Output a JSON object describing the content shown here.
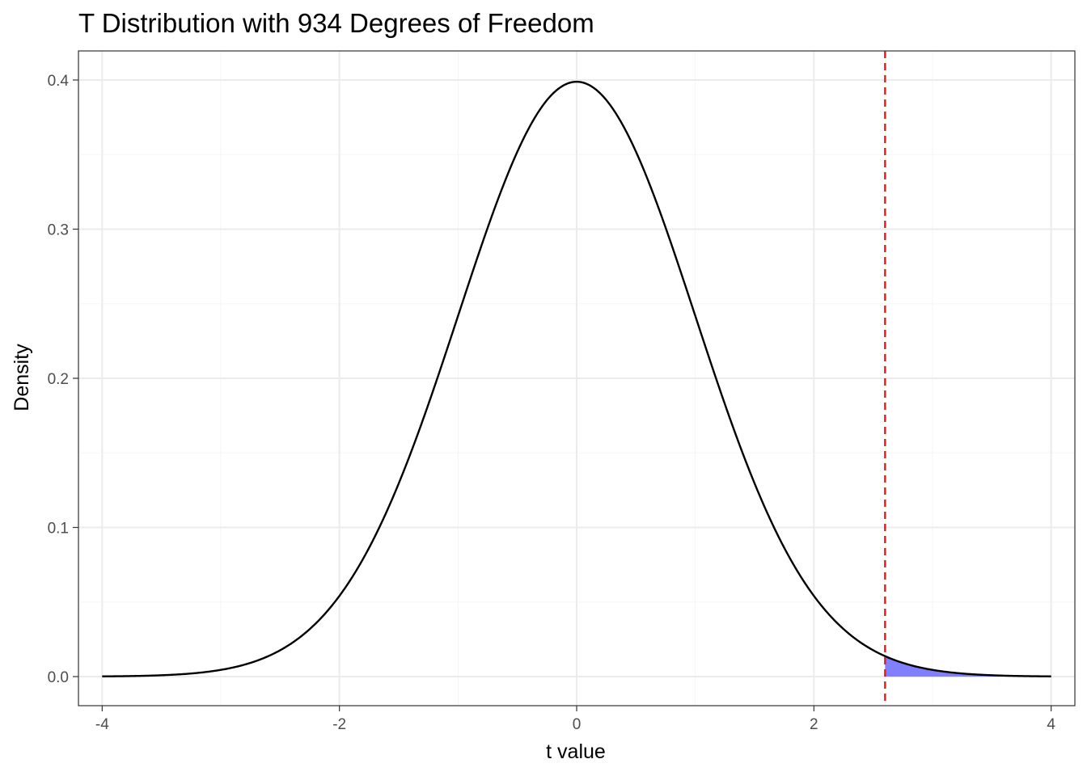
{
  "chart_data": {
    "type": "line",
    "title": "T Distribution with 934 Degrees of Freedom",
    "xlabel": "t value",
    "ylabel": "Density",
    "degrees_of_freedom": 934,
    "xlim": [
      -4.2,
      4.2
    ],
    "ylim": [
      -0.0195,
      0.4195
    ],
    "x_ticks": [
      -4,
      -2,
      0,
      2,
      4
    ],
    "x_tick_labels": [
      "-4",
      "-2",
      "0",
      "2",
      "4"
    ],
    "y_ticks": [
      0.0,
      0.1,
      0.2,
      0.3,
      0.4
    ],
    "y_tick_labels": [
      "0.0",
      "0.1",
      "0.2",
      "0.3",
      "0.4"
    ],
    "grid": true,
    "series": [
      {
        "x": [
          -4.0,
          -3.8,
          -3.6,
          -3.4,
          -3.2,
          -3.0,
          -2.8,
          -2.6,
          -2.4,
          -2.2,
          -2.0,
          -1.8,
          -1.6,
          -1.4,
          -1.2,
          -1.0,
          -0.8,
          -0.6,
          -0.4,
          -0.2,
          0.0,
          0.2,
          0.4,
          0.6,
          0.8,
          1.0,
          1.2,
          1.4,
          1.6,
          1.8,
          2.0,
          2.2,
          2.4,
          2.6,
          2.8,
          3.0,
          3.2,
          3.4,
          3.6,
          3.8,
          4.0
        ],
        "y": [
          0.0001,
          0.0003,
          0.0006,
          0.0012,
          0.0024,
          0.0045,
          0.008,
          0.0137,
          0.0225,
          0.0356,
          0.0541,
          0.079,
          0.1109,
          0.1497,
          0.1942,
          0.2419,
          0.2897,
          0.3332,
          0.3683,
          0.391,
          0.3988,
          0.391,
          0.3683,
          0.3332,
          0.2897,
          0.2419,
          0.1942,
          0.1497,
          0.1109,
          0.079,
          0.0541,
          0.0356,
          0.0225,
          0.0137,
          0.008,
          0.0045,
          0.0024,
          0.0012,
          0.0006,
          0.0003,
          0.0001
        ],
        "color": "#000000"
      }
    ],
    "critical_value": 2.6,
    "critical_line_color": "#e41a1c",
    "shaded_region": {
      "from": 2.6,
      "to": 4.0,
      "color": "#8080ff"
    },
    "colors": {
      "panel_border": "#333333",
      "grid_major": "#ebebeb",
      "grid_minor": "#f5f5f5",
      "tick": "#333333"
    }
  }
}
